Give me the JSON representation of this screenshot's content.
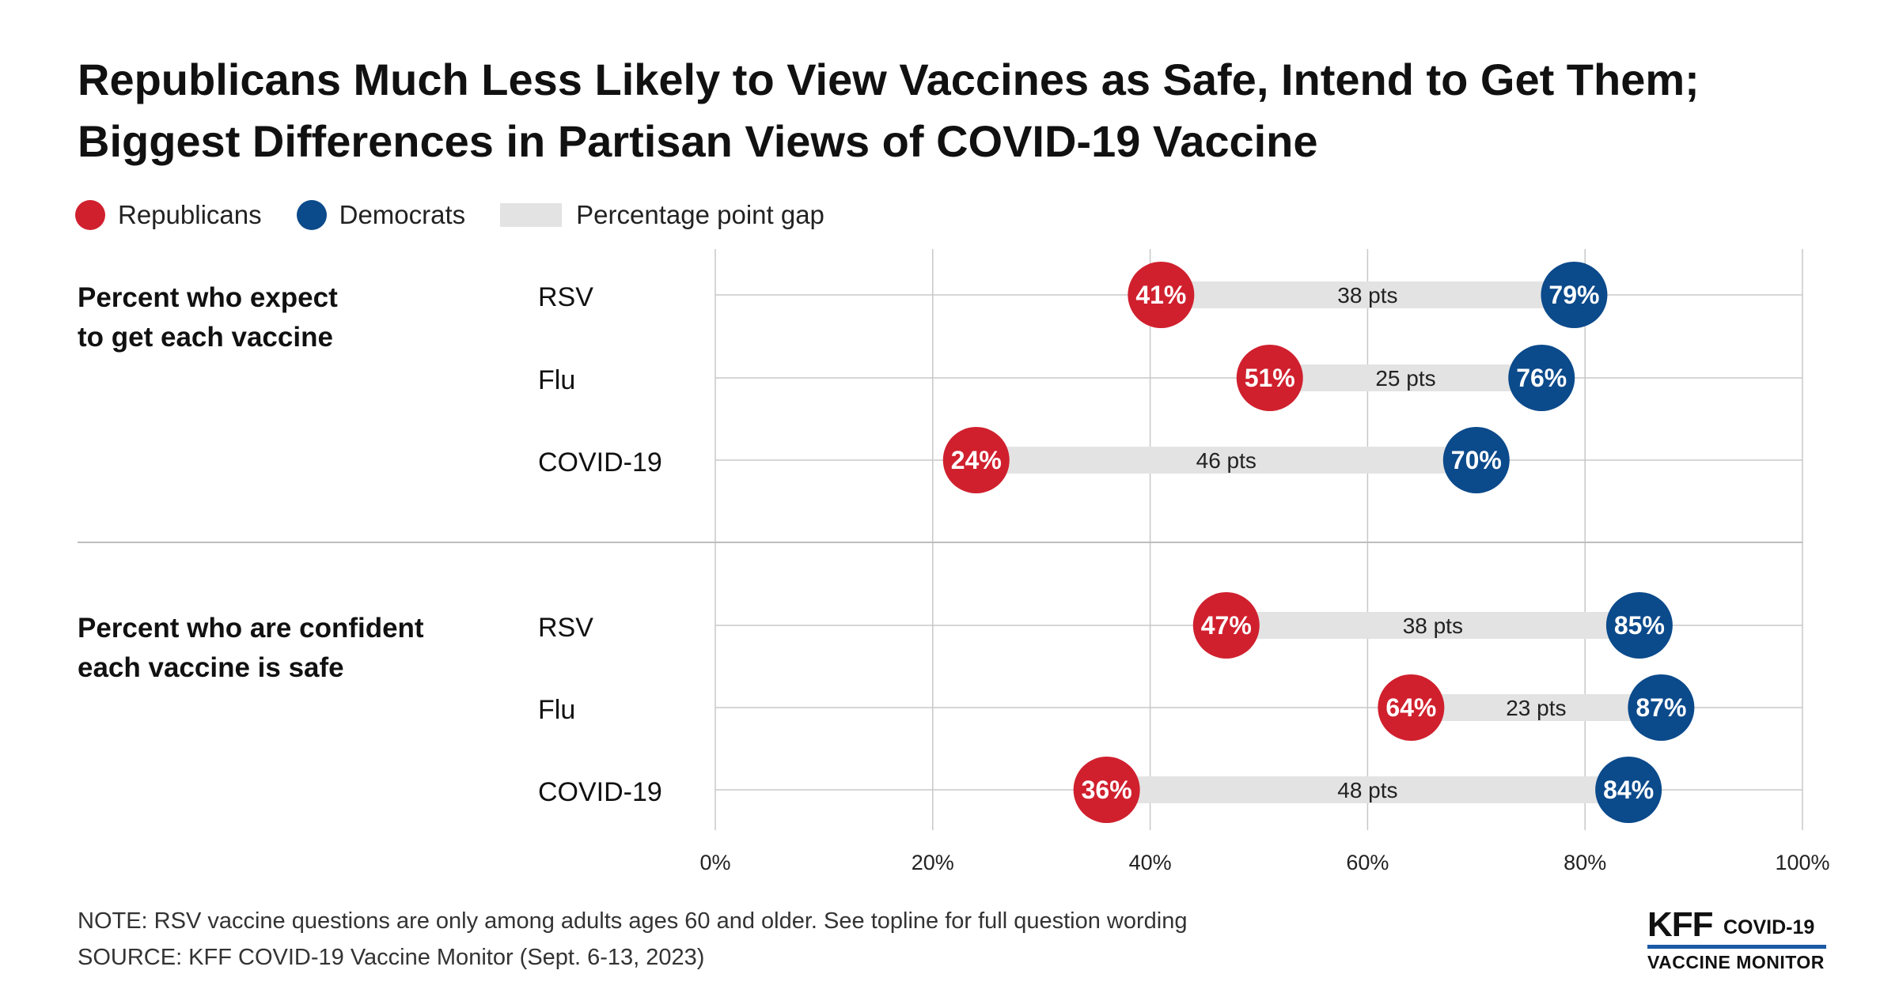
{
  "title_line1": "Republicans Much Less Likely to View Vaccines as Safe, Intend to Get Them;",
  "title_line2": "Biggest Differences in Partisan Views of COVID-19 Vaccine",
  "legend": {
    "republicans": "Republicans",
    "democrats": "Democrats",
    "gap": "Percentage point gap"
  },
  "colors": {
    "republicans": "#d0202e",
    "democrats": "#0b4a8b",
    "gap": "#e3e3e3",
    "grid": "#c8c8c8"
  },
  "notes": {
    "note": "NOTE: RSV vaccine questions are only among adults ages 60 and older. See topline for full question wording",
    "source": "SOURCE: KFF COVID-19 Vaccine Monitor (Sept. 6-13, 2023)"
  },
  "logo": {
    "kff": "KFF",
    "covid": "COVID-19",
    "monitor": "VACCINE MONITOR"
  },
  "chart_data": {
    "type": "dumbbell",
    "xlim": [
      0,
      100
    ],
    "x_ticks": [
      "0%",
      "20%",
      "40%",
      "60%",
      "80%",
      "100%"
    ],
    "groups": [
      {
        "label_lines": [
          "Percent who expect",
          "to get each vaccine"
        ],
        "rows": [
          {
            "category": "RSV",
            "republicans": 41,
            "democrats": 79,
            "rep_label": "41%",
            "dem_label": "79%",
            "gap_label": "38 pts"
          },
          {
            "category": "Flu",
            "republicans": 51,
            "democrats": 76,
            "rep_label": "51%",
            "dem_label": "76%",
            "gap_label": "25 pts"
          },
          {
            "category": "COVID-19",
            "republicans": 24,
            "democrats": 70,
            "rep_label": "24%",
            "dem_label": "70%",
            "gap_label": "46 pts"
          }
        ]
      },
      {
        "label_lines": [
          "Percent who are confident",
          "each vaccine is safe"
        ],
        "rows": [
          {
            "category": "RSV",
            "republicans": 47,
            "democrats": 85,
            "rep_label": "47%",
            "dem_label": "85%",
            "gap_label": "38 pts"
          },
          {
            "category": "Flu",
            "republicans": 64,
            "democrats": 87,
            "rep_label": "64%",
            "dem_label": "87%",
            "gap_label": "23 pts"
          },
          {
            "category": "COVID-19",
            "republicans": 36,
            "democrats": 84,
            "rep_label": "36%",
            "dem_label": "84%",
            "gap_label": "48 pts"
          }
        ]
      }
    ]
  }
}
